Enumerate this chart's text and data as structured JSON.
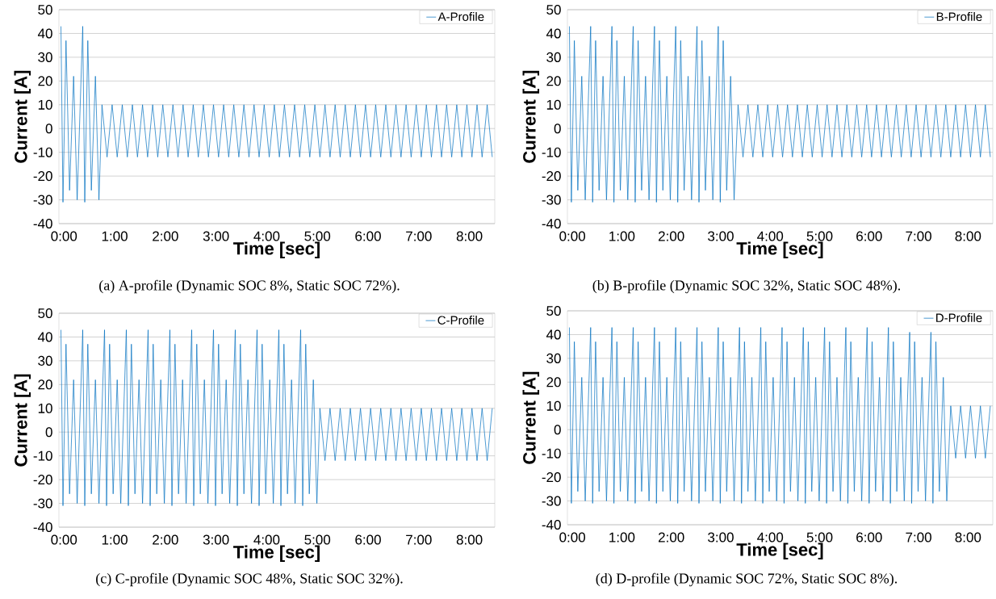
{
  "chart_data": [
    {
      "type": "line",
      "xlabel": "Time [sec]",
      "ylabel": "Current [A]",
      "annotations": [
        "(a) A-profile (Dynamic SOC 8%, Static SOC 72%)."
      ],
      "grid": "y",
      "legend": "top right",
      "xlim": [
        -0.1,
        8.5
      ],
      "ylim": [
        -40,
        50
      ],
      "yticks": [
        -40,
        -30,
        -20,
        -10,
        0,
        10,
        20,
        30,
        40,
        50
      ],
      "xticks": [
        {
          "value": 0,
          "label": "0:00"
        },
        {
          "value": 1,
          "label": "1:00"
        },
        {
          "value": 2,
          "label": "2:00"
        },
        {
          "value": 3,
          "label": "3:00"
        },
        {
          "value": 4,
          "label": "4:00"
        },
        {
          "value": 5,
          "label": "5:00"
        },
        {
          "value": 6,
          "label": "6:00"
        },
        {
          "value": 7,
          "label": "7:00"
        },
        {
          "value": 8,
          "label": "8:00"
        }
      ],
      "series": [
        {
          "name": "A-Profile",
          "color": "#0070c0",
          "x": [
            -0.06,
            -0.02,
            0.04,
            0.11,
            0.19,
            0.26,
            0.37,
            0.41,
            0.47,
            0.54,
            0.62,
            0.69,
            0.75,
            0.85,
            0.95,
            1.05,
            1.15,
            1.25,
            1.35,
            1.45,
            1.55,
            1.65,
            1.75,
            1.85,
            1.95,
            2.05,
            2.15,
            2.25,
            2.35,
            2.45,
            2.55,
            2.65,
            2.75,
            2.85,
            2.95,
            3.05,
            3.15,
            3.25,
            3.35,
            3.45,
            3.55,
            3.65,
            3.75,
            3.85,
            3.95,
            4.05,
            4.15,
            4.25,
            4.35,
            4.45,
            4.55,
            4.65,
            4.75,
            4.85,
            4.95,
            5.05,
            5.15,
            5.25,
            5.35,
            5.45,
            5.55,
            5.65,
            5.75,
            5.85,
            5.95,
            6.05,
            6.15,
            6.25,
            6.35,
            6.45,
            6.55,
            6.65,
            6.75,
            6.85,
            6.95,
            7.05,
            7.15,
            7.25,
            7.35,
            7.45,
            7.55,
            7.65,
            7.75,
            7.85,
            7.95,
            8.05,
            8.15,
            8.25,
            8.35,
            8.45
          ],
          "values": [
            43,
            -31,
            37,
            -26,
            22,
            -30,
            43,
            -31,
            37,
            -26,
            22,
            -30,
            10,
            -12,
            10,
            -12,
            10,
            -12,
            10,
            -12,
            10,
            -12,
            10,
            -12,
            10,
            -12,
            10,
            -12,
            10,
            -12,
            10,
            -12,
            10,
            -12,
            10,
            -12,
            10,
            -12,
            10,
            -12,
            10,
            -12,
            10,
            -12,
            10,
            -12,
            10,
            -12,
            10,
            -12,
            10,
            -12,
            10,
            -12,
            10,
            -12,
            10,
            -12,
            10,
            -12,
            10,
            -12,
            10,
            -12,
            10,
            -12,
            10,
            -12,
            10,
            -12,
            10,
            -12,
            10,
            -12,
            10,
            -12,
            10,
            -12,
            10,
            -12,
            10,
            -12,
            10,
            -12,
            10,
            -12,
            10,
            -12,
            10,
            -12
          ]
        }
      ]
    },
    {
      "type": "line",
      "xlabel": "Time [sec]",
      "ylabel": "Current [A]",
      "annotations": [
        "(b) B-profile (Dynamic SOC 32%, Static SOC 48%)."
      ],
      "grid": "y",
      "legend": "top right",
      "xlim": [
        -0.1,
        8.5
      ],
      "ylim": [
        -40,
        50
      ],
      "yticks": [
        -40,
        -30,
        -20,
        -10,
        0,
        10,
        20,
        30,
        40,
        50
      ],
      "xticks": [
        {
          "value": 0,
          "label": "0:00"
        },
        {
          "value": 1,
          "label": "1:00"
        },
        {
          "value": 2,
          "label": "2:00"
        },
        {
          "value": 3,
          "label": "3:00"
        },
        {
          "value": 4,
          "label": "4:00"
        },
        {
          "value": 5,
          "label": "5:00"
        },
        {
          "value": 6,
          "label": "6:00"
        },
        {
          "value": 7,
          "label": "7:00"
        },
        {
          "value": 8,
          "label": "8:00"
        }
      ],
      "series": [
        {
          "name": "B-Profile",
          "color": "#0070c0",
          "x": [
            -0.06,
            -0.02,
            0.04,
            0.11,
            0.19,
            0.26,
            0.37,
            0.41,
            0.47,
            0.54,
            0.62,
            0.69,
            0.8,
            0.84,
            0.9,
            0.97,
            1.05,
            1.12,
            1.23,
            1.27,
            1.33,
            1.4,
            1.48,
            1.55,
            1.66,
            1.7,
            1.76,
            1.83,
            1.91,
            1.98,
            2.09,
            2.13,
            2.19,
            2.26,
            2.34,
            2.41,
            2.52,
            2.56,
            2.62,
            2.69,
            2.77,
            2.84,
            2.95,
            2.99,
            3.05,
            3.12,
            3.2,
            3.27,
            3.35,
            3.45,
            3.55,
            3.65,
            3.75,
            3.85,
            3.95,
            4.05,
            4.15,
            4.25,
            4.35,
            4.45,
            4.55,
            4.65,
            4.75,
            4.85,
            4.95,
            5.05,
            5.15,
            5.25,
            5.35,
            5.45,
            5.55,
            5.65,
            5.75,
            5.85,
            5.95,
            6.05,
            6.15,
            6.25,
            6.35,
            6.45,
            6.55,
            6.65,
            6.75,
            6.85,
            6.95,
            7.05,
            7.15,
            7.25,
            7.35,
            7.45,
            7.55,
            7.65,
            7.75,
            7.85,
            7.95,
            8.05,
            8.15,
            8.25,
            8.35,
            8.45
          ],
          "values": [
            43,
            -31,
            37,
            -26,
            22,
            -30,
            43,
            -31,
            37,
            -26,
            22,
            -30,
            43,
            -31,
            37,
            -26,
            22,
            -30,
            43,
            -31,
            37,
            -26,
            22,
            -30,
            43,
            -31,
            37,
            -26,
            22,
            -30,
            43,
            -31,
            37,
            -26,
            22,
            -30,
            43,
            -31,
            37,
            -26,
            22,
            -30,
            43,
            -31,
            37,
            -26,
            22,
            -30,
            10,
            -12,
            10,
            -12,
            10,
            -12,
            10,
            -12,
            10,
            -12,
            10,
            -12,
            10,
            -12,
            10,
            -12,
            10,
            -12,
            10,
            -12,
            10,
            -12,
            10,
            -12,
            10,
            -12,
            10,
            -12,
            10,
            -12,
            10,
            -12,
            10,
            -12,
            10,
            -12,
            10,
            -12,
            10,
            -12,
            10,
            -12,
            10,
            -12,
            10,
            -12,
            10,
            -12,
            10,
            -12,
            10,
            -12
          ]
        }
      ]
    },
    {
      "type": "line",
      "xlabel": "Time [sec]",
      "ylabel": "Current [A]",
      "annotations": [
        "(c) C-profile (Dynamic SOC 48%, Static SOC 32%)."
      ],
      "grid": "y",
      "legend": "top right",
      "xlim": [
        -0.1,
        8.5
      ],
      "ylim": [
        -40,
        50
      ],
      "yticks": [
        -40,
        -30,
        -20,
        -10,
        0,
        10,
        20,
        30,
        40,
        50
      ],
      "xticks": [
        {
          "value": 0,
          "label": "0:00"
        },
        {
          "value": 1,
          "label": "1:00"
        },
        {
          "value": 2,
          "label": "2:00"
        },
        {
          "value": 3,
          "label": "3:00"
        },
        {
          "value": 4,
          "label": "4:00"
        },
        {
          "value": 5,
          "label": "5:00"
        },
        {
          "value": 6,
          "label": "6:00"
        },
        {
          "value": 7,
          "label": "7:00"
        },
        {
          "value": 8,
          "label": "8:00"
        }
      ],
      "series": [
        {
          "name": "C-Profile",
          "color": "#0070c0",
          "x": [
            -0.06,
            -0.02,
            0.04,
            0.11,
            0.19,
            0.26,
            0.37,
            0.41,
            0.47,
            0.54,
            0.62,
            0.69,
            0.8,
            0.84,
            0.9,
            0.97,
            1.05,
            1.12,
            1.23,
            1.27,
            1.33,
            1.4,
            1.48,
            1.55,
            1.66,
            1.7,
            1.76,
            1.83,
            1.91,
            1.98,
            2.09,
            2.13,
            2.19,
            2.26,
            2.34,
            2.41,
            2.52,
            2.56,
            2.62,
            2.69,
            2.77,
            2.84,
            2.95,
            2.99,
            3.05,
            3.12,
            3.2,
            3.27,
            3.38,
            3.42,
            3.48,
            3.55,
            3.63,
            3.7,
            3.81,
            3.85,
            3.91,
            3.98,
            4.06,
            4.13,
            4.24,
            4.28,
            4.34,
            4.41,
            4.49,
            4.56,
            4.67,
            4.71,
            4.77,
            4.84,
            4.92,
            4.99,
            5.05,
            5.15,
            5.25,
            5.35,
            5.45,
            5.55,
            5.65,
            5.75,
            5.85,
            5.95,
            6.05,
            6.15,
            6.25,
            6.35,
            6.45,
            6.55,
            6.65,
            6.75,
            6.85,
            6.95,
            7.05,
            7.15,
            7.25,
            7.35,
            7.45,
            7.55,
            7.65,
            7.75,
            7.85,
            7.95,
            8.05,
            8.15,
            8.25,
            8.35,
            8.45
          ],
          "values": [
            43,
            -31,
            37,
            -26,
            22,
            -30,
            43,
            -31,
            37,
            -26,
            22,
            -30,
            43,
            -31,
            37,
            -26,
            22,
            -30,
            43,
            -31,
            37,
            -26,
            22,
            -30,
            43,
            -31,
            37,
            -26,
            22,
            -30,
            43,
            -31,
            37,
            -26,
            22,
            -30,
            43,
            -31,
            37,
            -26,
            22,
            -30,
            43,
            -31,
            37,
            -26,
            22,
            -30,
            43,
            -31,
            37,
            -26,
            22,
            -30,
            43,
            -31,
            37,
            -26,
            22,
            -30,
            43,
            -31,
            37,
            -26,
            22,
            -30,
            43,
            -31,
            37,
            -26,
            22,
            -30,
            10,
            -12,
            10,
            -12,
            10,
            -12,
            10,
            -12,
            10,
            -12,
            10,
            -12,
            10,
            -12,
            10,
            -12,
            10,
            -12,
            10,
            -12,
            10,
            -12,
            10,
            -12,
            10,
            -12,
            10,
            -12,
            10,
            -12,
            10,
            -12,
            10,
            -12,
            10
          ]
        }
      ]
    },
    {
      "type": "line",
      "xlabel": "Time [sec]",
      "ylabel": "Current [A]",
      "annotations": [
        "(d) D-profile (Dynamic SOC 72%, Static SOC 8%)."
      ],
      "grid": "y",
      "legend": "top right",
      "xlim": [
        -0.1,
        8.5
      ],
      "ylim": [
        -40,
        50
      ],
      "yticks": [
        -40,
        -30,
        -20,
        -10,
        0,
        10,
        20,
        30,
        40,
        50
      ],
      "xticks": [
        {
          "value": 0,
          "label": "0:00"
        },
        {
          "value": 1,
          "label": "1:00"
        },
        {
          "value": 2,
          "label": "2:00"
        },
        {
          "value": 3,
          "label": "3:00"
        },
        {
          "value": 4,
          "label": "4:00"
        },
        {
          "value": 5,
          "label": "5:00"
        },
        {
          "value": 6,
          "label": "6:00"
        },
        {
          "value": 7,
          "label": "7:00"
        },
        {
          "value": 8,
          "label": "8:00"
        }
      ],
      "series": [
        {
          "name": "D-Profile",
          "color": "#0070c0",
          "x": [
            -0.06,
            -0.02,
            0.04,
            0.11,
            0.19,
            0.26,
            0.37,
            0.41,
            0.47,
            0.54,
            0.62,
            0.69,
            0.8,
            0.84,
            0.9,
            0.97,
            1.05,
            1.12,
            1.23,
            1.27,
            1.33,
            1.4,
            1.48,
            1.55,
            1.66,
            1.7,
            1.76,
            1.83,
            1.91,
            1.98,
            2.09,
            2.13,
            2.19,
            2.26,
            2.34,
            2.41,
            2.52,
            2.56,
            2.62,
            2.69,
            2.77,
            2.84,
            2.95,
            2.99,
            3.05,
            3.12,
            3.2,
            3.27,
            3.38,
            3.42,
            3.48,
            3.55,
            3.63,
            3.7,
            3.81,
            3.85,
            3.91,
            3.98,
            4.06,
            4.13,
            4.24,
            4.28,
            4.34,
            4.41,
            4.49,
            4.56,
            4.67,
            4.71,
            4.77,
            4.84,
            4.92,
            4.99,
            5.1,
            5.14,
            5.2,
            5.27,
            5.35,
            5.42,
            5.53,
            5.57,
            5.63,
            5.7,
            5.78,
            5.85,
            5.96,
            6.0,
            6.06,
            6.13,
            6.21,
            6.28,
            6.39,
            6.43,
            6.49,
            6.56,
            6.64,
            6.71,
            6.82,
            6.86,
            6.92,
            6.99,
            7.07,
            7.14,
            7.25,
            7.29,
            7.35,
            7.42,
            7.5,
            7.57,
            7.65,
            7.75,
            7.85,
            7.95,
            8.05,
            8.15,
            8.25,
            8.35,
            8.45
          ],
          "values": [
            43,
            -31,
            37,
            -26,
            22,
            -30,
            43,
            -31,
            37,
            -26,
            22,
            -30,
            43,
            -31,
            37,
            -26,
            22,
            -30,
            43,
            -31,
            37,
            -26,
            22,
            -30,
            43,
            -31,
            37,
            -26,
            22,
            -30,
            43,
            -31,
            37,
            -26,
            22,
            -30,
            43,
            -31,
            37,
            -26,
            22,
            -30,
            43,
            -31,
            37,
            -26,
            22,
            -30,
            43,
            -31,
            37,
            -26,
            22,
            -30,
            43,
            -31,
            37,
            -26,
            22,
            -30,
            43,
            -31,
            37,
            -26,
            22,
            -30,
            43,
            -31,
            37,
            -26,
            22,
            -30,
            43,
            -31,
            37,
            -26,
            22,
            -30,
            43,
            -31,
            37,
            -26,
            22,
            -30,
            43,
            -31,
            37,
            -26,
            22,
            -30,
            43,
            -31,
            37,
            -26,
            22,
            -30,
            41,
            -31,
            37,
            -26,
            22,
            -30,
            41,
            -31,
            37,
            -26,
            22,
            -30,
            10,
            -12,
            10,
            -12,
            10,
            -12,
            10,
            -12,
            10
          ]
        }
      ]
    }
  ]
}
